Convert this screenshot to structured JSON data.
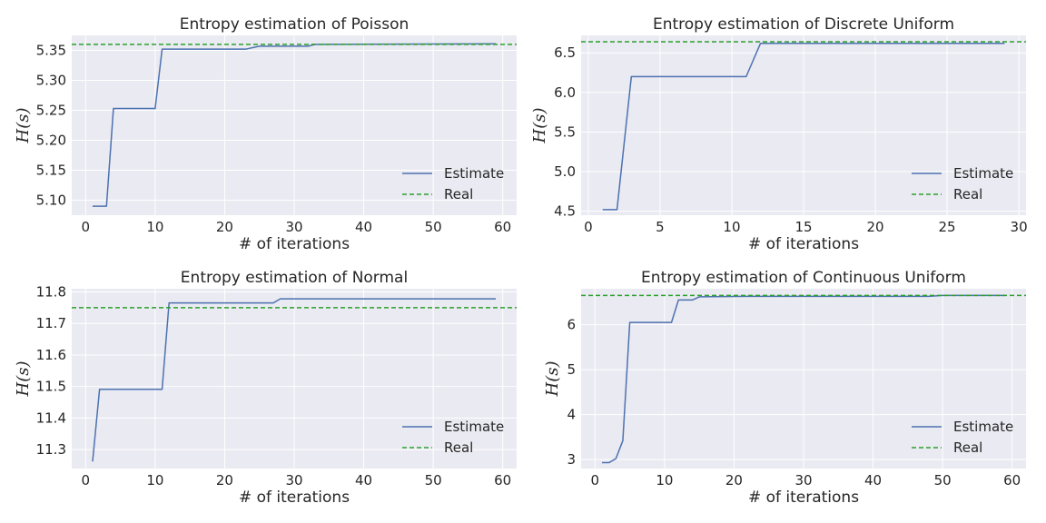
{
  "chart_data": [
    {
      "type": "line",
      "title": "Entropy estimation of Poisson",
      "xlabel": "# of iterations",
      "ylabel": "H(s)",
      "xlim": [
        -2,
        62
      ],
      "ylim": [
        5.075,
        5.375
      ],
      "xticks": [
        0,
        10,
        20,
        30,
        40,
        50,
        60
      ],
      "yticks": [
        5.1,
        5.15,
        5.2,
        5.25,
        5.3,
        5.35
      ],
      "ytick_labels": [
        "5.10",
        "5.15",
        "5.20",
        "5.25",
        "5.30",
        "5.35"
      ],
      "grid": true,
      "legend": "lower-right",
      "series": [
        {
          "name": "Estimate",
          "style": "solid",
          "color": "#4c72b0",
          "x": [
            1,
            3,
            4,
            10,
            11,
            23,
            25,
            32,
            33,
            59
          ],
          "y": [
            5.09,
            5.09,
            5.253,
            5.253,
            5.352,
            5.352,
            5.357,
            5.357,
            5.36,
            5.361
          ]
        },
        {
          "name": "Real",
          "style": "dashed",
          "color": "#2ca02c",
          "hline": 5.36
        }
      ]
    },
    {
      "type": "line",
      "title": "Entropy estimation of Discrete Uniform",
      "xlabel": "# of iterations",
      "ylabel": "H(s)",
      "xlim": [
        -0.5,
        30.5
      ],
      "ylim": [
        4.45,
        6.72
      ],
      "xticks": [
        0,
        5,
        10,
        15,
        20,
        25,
        30
      ],
      "yticks": [
        4.5,
        5.0,
        5.5,
        6.0,
        6.5
      ],
      "ytick_labels": [
        "4.5",
        "5.0",
        "5.5",
        "6.0",
        "6.5"
      ],
      "grid": true,
      "legend": "lower-right",
      "series": [
        {
          "name": "Estimate",
          "style": "solid",
          "color": "#4c72b0",
          "x": [
            1,
            2,
            3,
            11,
            12,
            29
          ],
          "y": [
            4.52,
            4.52,
            6.2,
            6.2,
            6.62,
            6.62
          ]
        },
        {
          "name": "Real",
          "style": "dashed",
          "color": "#2ca02c",
          "hline": 6.64
        }
      ]
    },
    {
      "type": "line",
      "title": "Entropy estimation of Normal",
      "xlabel": "# of iterations",
      "ylabel": "H(s)",
      "xlim": [
        -2,
        62
      ],
      "ylim": [
        11.24,
        11.81
      ],
      "xticks": [
        0,
        10,
        20,
        30,
        40,
        50,
        60
      ],
      "yticks": [
        11.3,
        11.4,
        11.5,
        11.6,
        11.7,
        11.8
      ],
      "ytick_labels": [
        "11.3",
        "11.4",
        "11.5",
        "11.6",
        "11.7",
        "11.8"
      ],
      "grid": true,
      "legend": "lower-right",
      "series": [
        {
          "name": "Estimate",
          "style": "solid",
          "color": "#4c72b0",
          "x": [
            1,
            2,
            11,
            12,
            27,
            28,
            59
          ],
          "y": [
            11.262,
            11.491,
            11.491,
            11.765,
            11.765,
            11.778,
            11.778
          ]
        },
        {
          "name": "Real",
          "style": "dashed",
          "color": "#2ca02c",
          "hline": 11.75
        }
      ]
    },
    {
      "type": "line",
      "title": "Entropy estimation of Continuous Uniform",
      "xlabel": "# of iterations",
      "ylabel": "H(s)",
      "xlim": [
        -2,
        62
      ],
      "ylim": [
        2.8,
        6.8
      ],
      "xticks": [
        0,
        10,
        20,
        30,
        40,
        50,
        60
      ],
      "yticks": [
        3,
        4,
        5,
        6
      ],
      "ytick_labels": [
        "3",
        "4",
        "5",
        "6"
      ],
      "grid": true,
      "legend": "lower-right",
      "series": [
        {
          "name": "Estimate",
          "style": "solid",
          "color": "#4c72b0",
          "x": [
            1,
            2,
            3,
            4,
            5,
            11,
            12,
            14,
            15,
            22,
            48,
            50,
            59
          ],
          "y": [
            2.93,
            2.93,
            3.02,
            3.42,
            6.05,
            6.05,
            6.55,
            6.55,
            6.62,
            6.63,
            6.63,
            6.65,
            6.65
          ]
        },
        {
          "name": "Real",
          "style": "dashed",
          "color": "#2ca02c",
          "hline": 6.65
        }
      ]
    }
  ],
  "style": {
    "plot_background": "#eaeaf2",
    "grid_color": "#ffffff",
    "text_color": "#262626"
  }
}
